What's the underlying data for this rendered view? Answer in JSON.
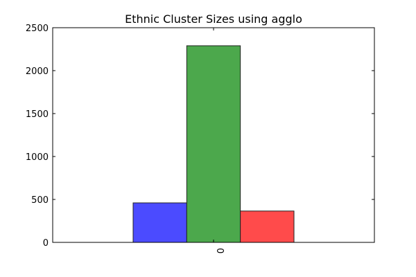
{
  "chart_data": {
    "type": "bar",
    "title": "Ethnic Cluster Sizes using agglo",
    "xlabel": "",
    "ylabel": "",
    "categories": [
      "0"
    ],
    "series": [
      {
        "values": [
          460
        ],
        "color": "#4b4bff"
      },
      {
        "values": [
          2290
        ],
        "color": "#4ca84c"
      },
      {
        "values": [
          365
        ],
        "color": "#ff4b4b"
      }
    ],
    "ylim": [
      0,
      2500
    ],
    "yticks": [
      0,
      500,
      1000,
      1500,
      2000,
      2500
    ],
    "xtick_rotation": "vertical",
    "grid": false,
    "legend": "none"
  }
}
